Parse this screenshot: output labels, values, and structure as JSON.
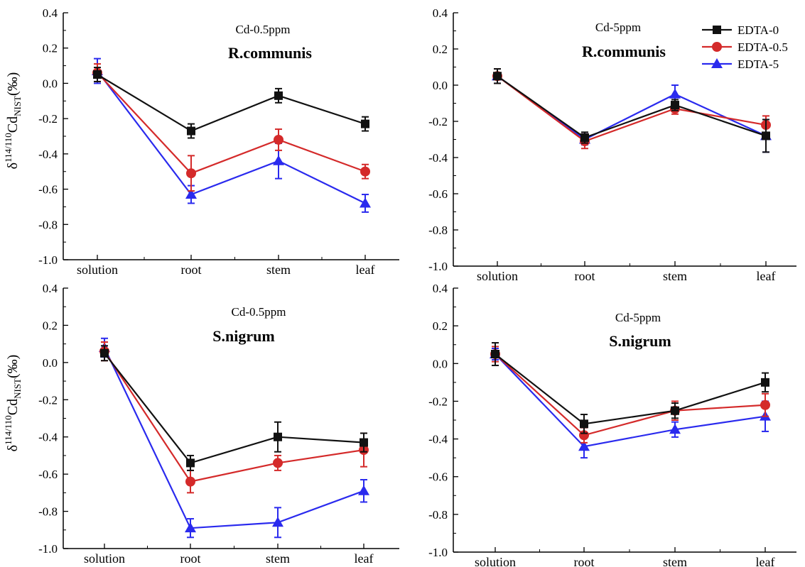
{
  "figure": {
    "ylabel": {
      "delta": "δ",
      "superscript": "114/110",
      "element": "Cd",
      "subscript": "NIST",
      "unit": "(‰)"
    }
  },
  "colors": {
    "EDTA-0": "#111111",
    "EDTA-0.5": "#d42a2a",
    "EDTA-5": "#2a2aee"
  },
  "markers": {
    "EDTA-0": "square",
    "EDTA-0.5": "circle",
    "EDTA-5": "triangle"
  },
  "chart_data": [
    {
      "type": "line",
      "panel": "top-left",
      "condition": "Cd-0.5ppm",
      "species": "R.communis",
      "categories": [
        "solution",
        "root",
        "stem",
        "leaf"
      ],
      "ylim": [
        -1.0,
        0.4
      ],
      "yticks": [
        "0.4",
        "0.2",
        "0.0",
        "-0.2",
        "-0.4",
        "-0.6",
        "-0.8",
        "-1.0"
      ],
      "legend": false,
      "series": [
        {
          "name": "EDTA-0",
          "values": [
            0.05,
            -0.27,
            -0.07,
            -0.23
          ],
          "errors": [
            0.04,
            0.04,
            0.04,
            0.04
          ]
        },
        {
          "name": "EDTA-0.5",
          "values": [
            0.06,
            -0.51,
            -0.32,
            -0.5
          ],
          "errors": [
            0.05,
            0.1,
            0.06,
            0.04
          ]
        },
        {
          "name": "EDTA-5",
          "values": [
            0.07,
            -0.63,
            -0.44,
            -0.68
          ],
          "errors": [
            0.07,
            0.05,
            0.1,
            0.05
          ]
        }
      ]
    },
    {
      "type": "line",
      "panel": "top-right",
      "condition": "Cd-5ppm",
      "species": "R.communis",
      "categories": [
        "solution",
        "root",
        "stem",
        "leaf"
      ],
      "ylim": [
        -1.0,
        0.4
      ],
      "yticks": [
        "0.4",
        "0.2",
        "0.0",
        "-0.2",
        "-0.4",
        "-0.6",
        "-0.8",
        "-1.0"
      ],
      "legend": true,
      "legend_position": "top-right",
      "series": [
        {
          "name": "EDTA-0",
          "values": [
            0.05,
            -0.29,
            -0.11,
            -0.28
          ],
          "errors": [
            0.04,
            0.03,
            0.03,
            0.09
          ]
        },
        {
          "name": "EDTA-0.5",
          "values": [
            0.05,
            -0.31,
            -0.13,
            -0.22
          ],
          "errors": [
            0.04,
            0.04,
            0.03,
            0.05
          ]
        },
        {
          "name": "EDTA-5",
          "values": [
            0.05,
            -0.3,
            -0.05,
            -0.28
          ],
          "errors": [
            0.04,
            0.03,
            0.05,
            0.09
          ]
        }
      ]
    },
    {
      "type": "line",
      "panel": "bottom-left",
      "condition": "Cd-0.5ppm",
      "species": "S.nigrum",
      "categories": [
        "solution",
        "root",
        "stem",
        "leaf"
      ],
      "ylim": [
        -1.0,
        0.4
      ],
      "yticks": [
        "0.4",
        "0.2",
        "0.0",
        "-0.2",
        "-0.4",
        "-0.6",
        "-0.8",
        "-1.0"
      ],
      "legend": false,
      "series": [
        {
          "name": "EDTA-0",
          "values": [
            0.05,
            -0.54,
            -0.4,
            -0.43
          ],
          "errors": [
            0.04,
            0.04,
            0.08,
            0.05
          ]
        },
        {
          "name": "EDTA-0.5",
          "values": [
            0.06,
            -0.64,
            -0.54,
            -0.47
          ],
          "errors": [
            0.05,
            0.06,
            0.04,
            0.09
          ]
        },
        {
          "name": "EDTA-5",
          "values": [
            0.08,
            -0.89,
            -0.86,
            -0.69
          ],
          "errors": [
            0.05,
            0.05,
            0.08,
            0.06
          ]
        }
      ]
    },
    {
      "type": "line",
      "panel": "bottom-right",
      "condition": "Cd-5ppm",
      "species": "S.nigrum",
      "categories": [
        "solution",
        "root",
        "stem",
        "leaf"
      ],
      "ylim": [
        -1.0,
        0.4
      ],
      "yticks": [
        "0.4",
        "0.2",
        "0.0",
        "-0.2",
        "-0.4",
        "-0.6",
        "-0.8",
        "-1.0"
      ],
      "legend": false,
      "series": [
        {
          "name": "EDTA-0",
          "values": [
            0.05,
            -0.32,
            -0.25,
            -0.1
          ],
          "errors": [
            0.06,
            0.05,
            0.04,
            0.05
          ]
        },
        {
          "name": "EDTA-0.5",
          "values": [
            0.05,
            -0.38,
            -0.25,
            -0.22
          ],
          "errors": [
            0.04,
            0.04,
            0.05,
            0.06
          ]
        },
        {
          "name": "EDTA-5",
          "values": [
            0.05,
            -0.44,
            -0.35,
            -0.28
          ],
          "errors": [
            0.03,
            0.06,
            0.04,
            0.08
          ]
        }
      ]
    }
  ]
}
